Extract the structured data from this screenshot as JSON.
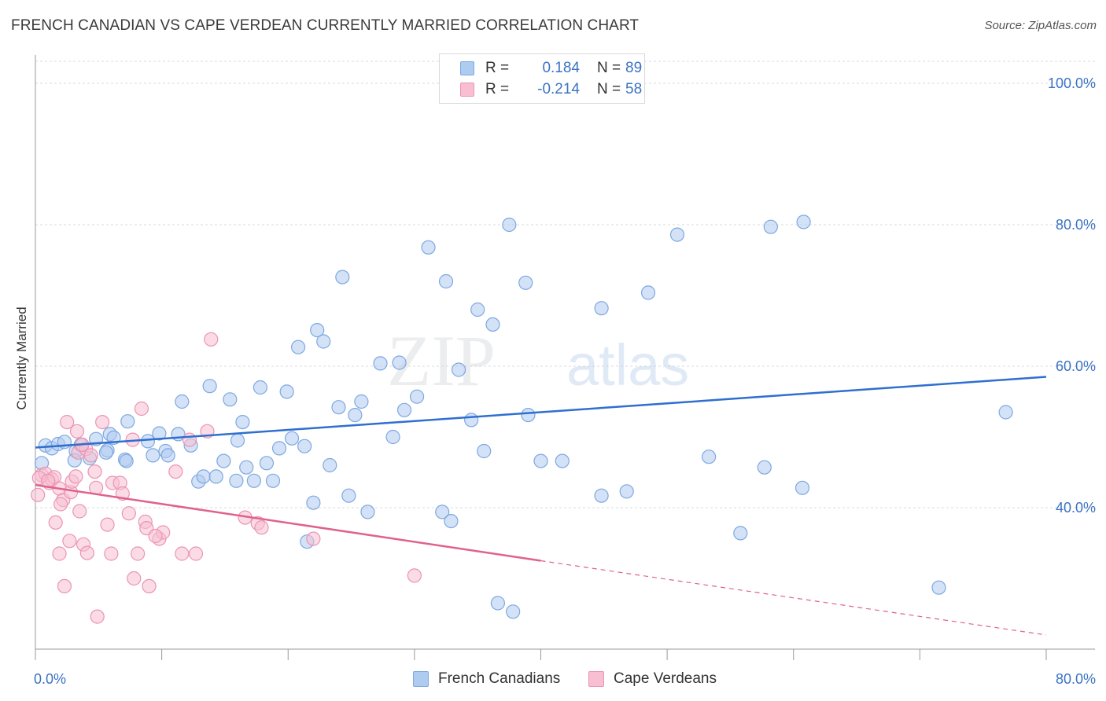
{
  "header": {
    "title": "FRENCH CANADIAN VS CAPE VERDEAN CURRENTLY MARRIED CORRELATION CHART",
    "source": "Source: ZipAtlas.com"
  },
  "watermark": {
    "zip": "ZIP",
    "atlas": "atlas"
  },
  "legend": {
    "rows": [
      {
        "r_label": "R =",
        "r_value": "0.184",
        "n_label": "N =",
        "n_value": "89",
        "color": "#aecbf0",
        "stroke": "#7ea8e0"
      },
      {
        "r_label": "R =",
        "r_value": "-0.214",
        "n_label": "N =",
        "n_value": "58",
        "color": "#f7bfd1",
        "stroke": "#eb94b2"
      }
    ]
  },
  "bottom_legend": [
    {
      "label": "French Canadians",
      "color": "#aecbf0",
      "stroke": "#7ea8e0"
    },
    {
      "label": "Cape Verdeans",
      "color": "#f7bfd1",
      "stroke": "#eb94b2"
    }
  ],
  "chart_data": {
    "type": "scatter",
    "title": "FRENCH CANADIAN VS CAPE VERDEAN CURRENTLY MARRIED CORRELATION CHART",
    "xlabel": "",
    "ylabel": "Currently Married",
    "xlim": [
      0,
      80
    ],
    "ylim": [
      20,
      104
    ],
    "x_ticks": [
      {
        "value": 0,
        "label": "0.0%"
      },
      {
        "value": 80,
        "label": "80.0%"
      }
    ],
    "y_ticks": [
      {
        "value": 40,
        "label": "40.0%"
      },
      {
        "value": 60,
        "label": "60.0%"
      },
      {
        "value": 80,
        "label": "80.0%"
      },
      {
        "value": 100,
        "label": "100.0%"
      }
    ],
    "grid": true,
    "legend_position": "top-center",
    "series": [
      {
        "name": "French Canadians",
        "color": "#aecbf0",
        "stroke": "#7ea8e0",
        "trend_color": "#2f6fcf",
        "trend": {
          "x": [
            0,
            80
          ],
          "y": [
            48.5,
            58.5
          ],
          "dashed_from": 80
        },
        "points": [
          [
            0.8,
            48.8
          ],
          [
            1.3,
            48.4
          ],
          [
            1.8,
            49.0
          ],
          [
            2.3,
            49.3
          ],
          [
            3.2,
            48.0
          ],
          [
            3.6,
            48.9
          ],
          [
            4.8,
            49.7
          ],
          [
            5.7,
            48.1
          ],
          [
            5.9,
            50.4
          ],
          [
            4.3,
            47.0
          ],
          [
            5.6,
            47.8
          ],
          [
            7.3,
            52.2
          ],
          [
            7.1,
            46.8
          ],
          [
            7.2,
            46.6
          ],
          [
            8.9,
            49.4
          ],
          [
            9.3,
            47.4
          ],
          [
            9.8,
            50.5
          ],
          [
            10.3,
            48.0
          ],
          [
            10.5,
            47.4
          ],
          [
            11.3,
            50.4
          ],
          [
            12.3,
            48.8
          ],
          [
            11.6,
            55.0
          ],
          [
            12.9,
            43.7
          ],
          [
            13.3,
            44.4
          ],
          [
            13.8,
            57.2
          ],
          [
            14.3,
            44.4
          ],
          [
            14.9,
            46.6
          ],
          [
            15.4,
            55.3
          ],
          [
            15.9,
            43.8
          ],
          [
            16.4,
            52.1
          ],
          [
            16.7,
            45.7
          ],
          [
            17.3,
            43.8
          ],
          [
            17.8,
            57.0
          ],
          [
            18.3,
            46.3
          ],
          [
            18.8,
            43.8
          ],
          [
            19.3,
            48.4
          ],
          [
            19.9,
            56.4
          ],
          [
            20.3,
            49.8
          ],
          [
            20.8,
            62.7
          ],
          [
            21.3,
            48.7
          ],
          [
            22.0,
            40.7
          ],
          [
            22.3,
            65.1
          ],
          [
            22.8,
            63.5
          ],
          [
            23.3,
            46.0
          ],
          [
            24.0,
            54.2
          ],
          [
            24.3,
            72.6
          ],
          [
            24.8,
            41.7
          ],
          [
            25.3,
            53.1
          ],
          [
            25.8,
            55.0
          ],
          [
            26.3,
            39.4
          ],
          [
            27.3,
            60.4
          ],
          [
            28.3,
            50.0
          ],
          [
            28.8,
            60.5
          ],
          [
            29.2,
            53.8
          ],
          [
            30.2,
            55.7
          ],
          [
            31.1,
            76.8
          ],
          [
            32.2,
            39.4
          ],
          [
            32.5,
            72.0
          ],
          [
            32.9,
            38.1
          ],
          [
            33.5,
            59.5
          ],
          [
            34.5,
            52.4
          ],
          [
            35.0,
            68.0
          ],
          [
            35.5,
            48.0
          ],
          [
            36.2,
            65.9
          ],
          [
            36.6,
            26.5
          ],
          [
            37.5,
            80.0
          ],
          [
            37.8,
            25.3
          ],
          [
            38.8,
            71.8
          ],
          [
            39.0,
            53.1
          ],
          [
            40.0,
            46.6
          ],
          [
            41.7,
            46.6
          ],
          [
            44.8,
            41.7
          ],
          [
            44.8,
            68.2
          ],
          [
            46.8,
            42.3
          ],
          [
            48.5,
            70.4
          ],
          [
            50.8,
            78.6
          ],
          [
            53.3,
            47.2
          ],
          [
            55.8,
            36.4
          ],
          [
            57.7,
            45.7
          ],
          [
            58.2,
            79.7
          ],
          [
            60.7,
            42.8
          ],
          [
            60.8,
            80.4
          ],
          [
            71.5,
            28.7
          ],
          [
            76.8,
            53.5
          ],
          [
            0.5,
            46.3
          ],
          [
            3.1,
            46.7
          ],
          [
            6.2,
            49.9
          ],
          [
            16.0,
            49.5
          ],
          [
            21.5,
            35.2
          ]
        ]
      },
      {
        "name": "Cape Verdeans",
        "color": "#f7bfd1",
        "stroke": "#eb94b2",
        "trend_color": "#e0618f",
        "trend": {
          "x": [
            0,
            40
          ],
          "y": [
            43.2,
            32.5
          ],
          "dashed_to": [
            80,
            22.0
          ]
        },
        "points": [
          [
            0.2,
            41.8
          ],
          [
            0.5,
            44.6
          ],
          [
            0.8,
            44.8
          ],
          [
            1.1,
            43.5
          ],
          [
            1.3,
            44.0
          ],
          [
            1.5,
            44.3
          ],
          [
            1.6,
            37.9
          ],
          [
            1.9,
            42.7
          ],
          [
            1.9,
            33.5
          ],
          [
            2.2,
            41.1
          ],
          [
            2.3,
            28.9
          ],
          [
            2.5,
            52.1
          ],
          [
            2.7,
            35.3
          ],
          [
            2.8,
            42.2
          ],
          [
            2.9,
            43.7
          ],
          [
            3.2,
            44.4
          ],
          [
            3.3,
            50.8
          ],
          [
            3.4,
            47.8
          ],
          [
            3.5,
            39.5
          ],
          [
            3.8,
            34.8
          ],
          [
            4.0,
            48.3
          ],
          [
            4.1,
            33.6
          ],
          [
            4.4,
            47.4
          ],
          [
            4.7,
            45.1
          ],
          [
            4.8,
            42.8
          ],
          [
            4.9,
            24.6
          ],
          [
            5.3,
            52.1
          ],
          [
            5.7,
            37.6
          ],
          [
            6.0,
            33.5
          ],
          [
            6.1,
            43.5
          ],
          [
            6.7,
            43.5
          ],
          [
            7.4,
            39.2
          ],
          [
            7.7,
            49.6
          ],
          [
            7.8,
            30.0
          ],
          [
            8.1,
            33.5
          ],
          [
            8.4,
            54.0
          ],
          [
            8.7,
            38.0
          ],
          [
            8.8,
            37.1
          ],
          [
            9.0,
            28.9
          ],
          [
            9.8,
            35.6
          ],
          [
            10.1,
            36.5
          ],
          [
            11.1,
            45.1
          ],
          [
            11.6,
            33.5
          ],
          [
            12.2,
            49.6
          ],
          [
            12.7,
            33.5
          ],
          [
            13.6,
            50.8
          ],
          [
            13.9,
            63.8
          ],
          [
            16.6,
            38.6
          ],
          [
            17.6,
            37.8
          ],
          [
            17.9,
            37.2
          ],
          [
            22.0,
            35.6
          ],
          [
            30.0,
            30.4
          ],
          [
            0.3,
            44.2
          ],
          [
            1.0,
            43.8
          ],
          [
            2.0,
            40.5
          ],
          [
            3.7,
            48.9
          ],
          [
            9.5,
            36.0
          ],
          [
            6.9,
            42.0
          ]
        ]
      }
    ]
  }
}
